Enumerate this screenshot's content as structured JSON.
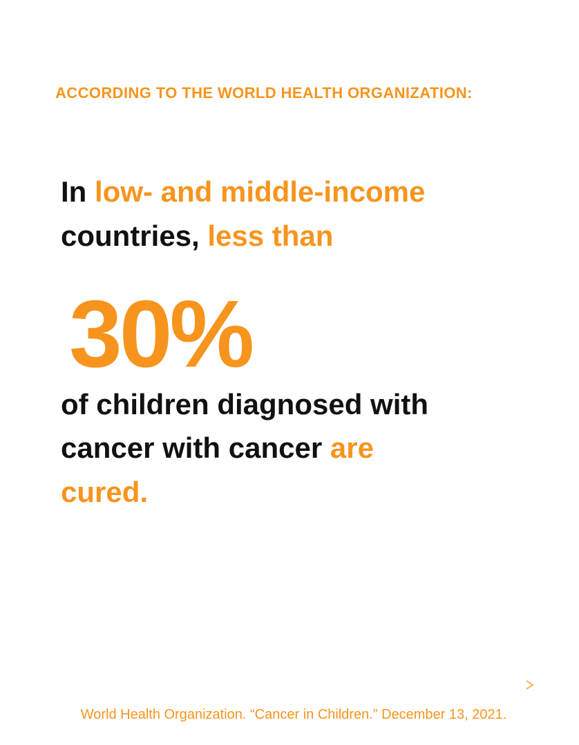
{
  "heading": "ACCORDING TO THE WORLD HEALTH ORGANIZATION:",
  "statement": {
    "lines_before": [
      [
        {
          "text": "In",
          "accent": false
        },
        {
          "text": "low- and middle-income",
          "accent": true
        }
      ],
      [
        {
          "text": "countries,",
          "accent": false
        },
        {
          "text": "less than",
          "accent": true
        }
      ]
    ],
    "figure": "30%",
    "lines_after": [
      [
        {
          "text": "of children diagnosed with",
          "accent": false
        }
      ],
      [
        {
          "text": "cancer with cancer",
          "accent": false
        },
        {
          "text": "are",
          "accent": true
        }
      ],
      [
        {
          "text": "cured.",
          "accent": true
        }
      ]
    ]
  },
  "citation": "World Health Organization. “Cancer in Children.” December 13, 2021."
}
